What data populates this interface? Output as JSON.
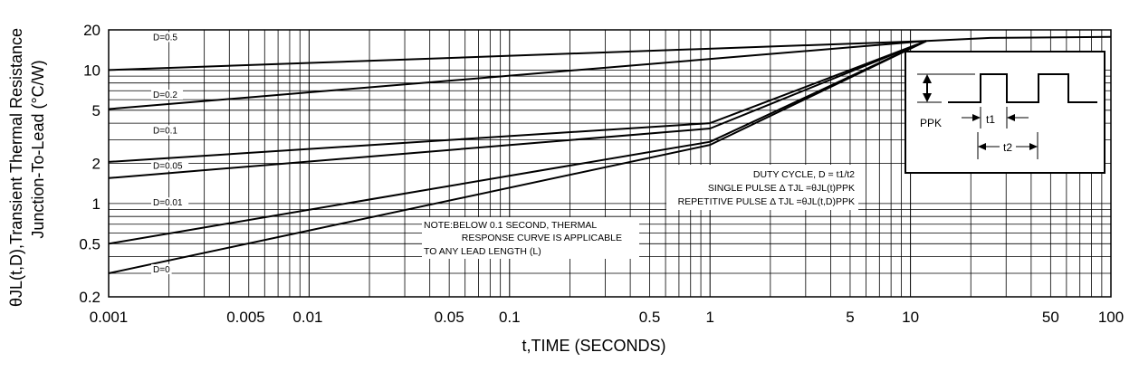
{
  "chart_data": {
    "type": "line",
    "xscale": "log",
    "yscale": "log",
    "xlim": [
      0.001,
      100
    ],
    "ylim": [
      0.2,
      20
    ],
    "grid": true,
    "xlabel": "t,TIME (SECONDS)",
    "ylabel_line1": "θJL(t,D),Transient Thermal Resistance",
    "ylabel_line2": "Junction-To-Lead (°C/W)",
    "x_ticks": [
      {
        "value": 0.001,
        "label": "0.001"
      },
      {
        "value": 0.005,
        "label": "0.005"
      },
      {
        "value": 0.01,
        "label": "0.01"
      },
      {
        "value": 0.05,
        "label": "0.05"
      },
      {
        "value": 0.1,
        "label": "0.1"
      },
      {
        "value": 0.5,
        "label": "0.5"
      },
      {
        "value": 1,
        "label": "1"
      },
      {
        "value": 5,
        "label": "5"
      },
      {
        "value": 10,
        "label": "10"
      },
      {
        "value": 50,
        "label": "50"
      },
      {
        "value": 100,
        "label": "100"
      }
    ],
    "y_ticks": [
      {
        "value": 0.2,
        "label": "0.2"
      },
      {
        "value": 0.5,
        "label": "0.5"
      },
      {
        "value": 1,
        "label": "1"
      },
      {
        "value": 2,
        "label": "2"
      },
      {
        "value": 5,
        "label": "5"
      },
      {
        "value": 10,
        "label": "10"
      },
      {
        "value": 20,
        "label": "20"
      }
    ],
    "series": [
      {
        "name": "D=0.5",
        "label_at": [
          0.0017,
          17
        ],
        "points": [
          [
            0.001,
            10
          ],
          [
            12,
            16.5
          ]
        ]
      },
      {
        "name": "D=0.2",
        "label_at": [
          0.0017,
          6.3
        ],
        "points": [
          [
            0.001,
            5.1
          ],
          [
            12,
            16.5
          ]
        ]
      },
      {
        "name": "D=0.1",
        "label_at": [
          0.0017,
          3.4
        ],
        "points": [
          [
            0.001,
            2.05
          ],
          [
            1,
            4.0
          ],
          [
            12,
            16.5
          ]
        ]
      },
      {
        "name": "D=0.05",
        "label_at": [
          0.0017,
          1.85
        ],
        "points": [
          [
            0.001,
            1.55
          ],
          [
            1,
            3.65
          ],
          [
            12,
            16.5
          ]
        ]
      },
      {
        "name": "D=0.01",
        "label_at": [
          0.0017,
          0.98
        ],
        "points": [
          [
            0.001,
            0.5
          ],
          [
            1,
            2.9
          ],
          [
            12,
            16.5
          ]
        ]
      },
      {
        "name": "D=0",
        "label_at": [
          0.0017,
          0.31
        ],
        "points": [
          [
            0.001,
            0.3
          ],
          [
            1,
            2.75
          ],
          [
            12,
            16.5
          ],
          [
            25,
            17.4
          ],
          [
            100,
            17.7
          ]
        ]
      }
    ],
    "annotations": {
      "note": [
        "NOTE:BELOW 0.1 SECOND, THERMAL",
        "RESPONSE CURVE IS APPLICABLE",
        "TO ANY LEAD LENGTH (L)"
      ],
      "duty_cycle": "DUTY CYCLE, D = t1/t2",
      "single_pulse": "SINGLE PULSE Δ TJL =θJL(t)PPK",
      "repetitive_pulse": "REPETITIVE PULSE Δ TJL =θJL(t,D)PPK",
      "inset_ppk": "PPK",
      "inset_t1": "t1",
      "inset_t2": "t2"
    }
  }
}
